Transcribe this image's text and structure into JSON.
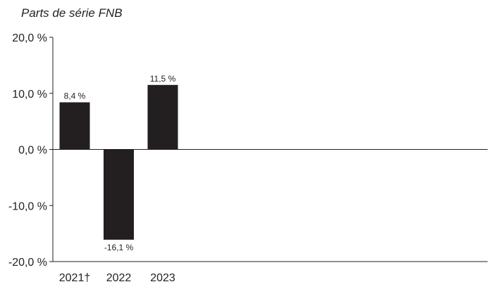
{
  "chart_data": {
    "type": "bar",
    "title": "Parts de série FNB",
    "xlabel": "",
    "ylabel": "",
    "categories": [
      "2021†",
      "2022",
      "2023"
    ],
    "values": [
      8.4,
      -16.1,
      11.5
    ],
    "data_labels": [
      "8,4 %",
      "-16,1 %",
      "11,5 %"
    ],
    "ylim": [
      -20,
      20
    ],
    "yticks": [
      20,
      10,
      0,
      -10,
      -20
    ],
    "ytick_labels": [
      "20,0 %",
      "10,0 %",
      "0,0 %",
      "-10,0 %",
      "-20,0 %"
    ],
    "bar_color": "#231f20",
    "grid": false,
    "legend": "none"
  }
}
